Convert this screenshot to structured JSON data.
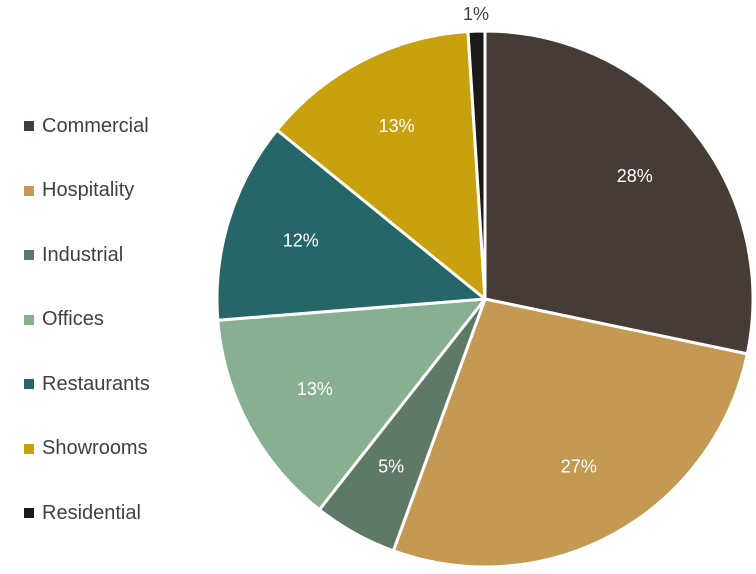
{
  "chart_data": {
    "type": "pie",
    "title": "",
    "categories": [
      "Commercial",
      "Hospitality",
      "Industrial",
      "Offices",
      "Restaurants",
      "Showrooms",
      "Residential"
    ],
    "values": [
      28,
      27,
      5,
      13,
      12,
      13,
      1
    ],
    "value_labels": [
      "28%",
      "27%",
      "5%",
      "13%",
      "12%",
      "13%",
      "1%"
    ],
    "colors": [
      "#473B35",
      "#C49A52",
      "#5E7A66",
      "#88B090",
      "#266669",
      "#C8A20E",
      "#1C1A18"
    ],
    "legend_position": "left",
    "start_angle": "12 o'clock",
    "direction": "clockwise"
  }
}
